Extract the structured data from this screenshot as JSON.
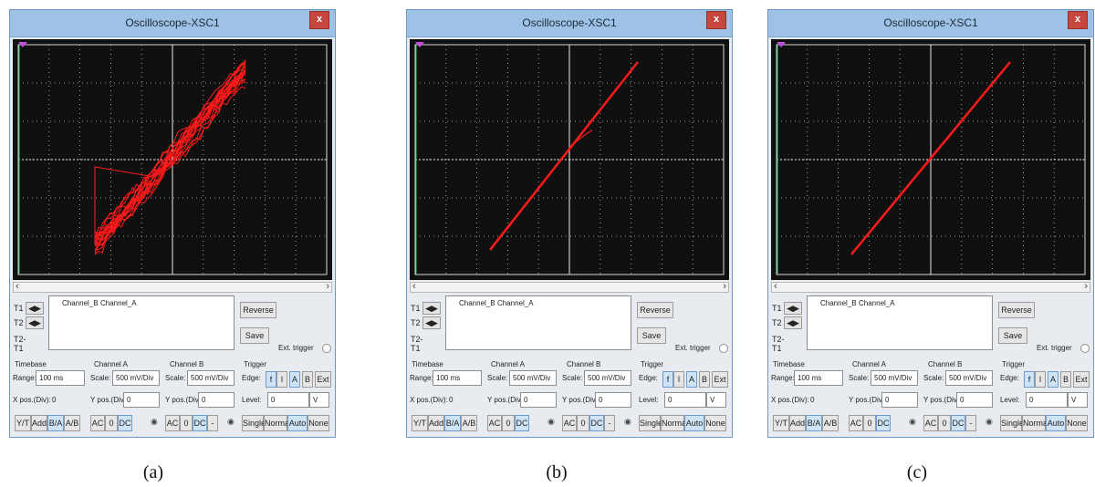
{
  "title": "Oscilloscope-XSC1",
  "close": "x",
  "cursors": {
    "t1": "T1",
    "t2": "T2",
    "t2t1": "T2-T1",
    "arrows": "◀▶"
  },
  "measure": {
    "ch_b": "Channel_B",
    "ch_a": "Channel_A"
  },
  "buttons": {
    "reverse": "Reverse",
    "save": "Save",
    "ext_trigger": "Ext. trigger"
  },
  "timebase": {
    "heading": "Timebase",
    "range_label": "Range:",
    "range": "100 ms",
    "xpos_label": "X pos.(Div):",
    "xpos": "0",
    "modes": [
      "Y/T",
      "Add",
      "B/A",
      "A/B"
    ]
  },
  "channel_a": {
    "heading": "Channel A",
    "scale_label": "Scale:",
    "scale": "500 mV/Div",
    "ypos_label": "Y pos.(Div):",
    "ypos": "0",
    "coupling": [
      "AC",
      "0",
      "DC"
    ]
  },
  "channel_b": {
    "heading": "Channel B",
    "scale_label": "Scale:",
    "scale": "500 mV/Div",
    "ypos_label": "Y pos.(Div):",
    "ypos": "0",
    "coupling": [
      "AC",
      "0",
      "DC",
      "-"
    ]
  },
  "trigger": {
    "heading": "Trigger",
    "edge_label": "Edge:",
    "edges": [
      "f",
      "l",
      "A",
      "B",
      "Ext"
    ],
    "level_label": "Level:",
    "level": "0",
    "level_unit": "V",
    "modes": [
      "Single",
      "Normal",
      "Auto",
      "None"
    ]
  },
  "captions": [
    "(a)",
    "(b)",
    "(c)"
  ],
  "colors": {
    "trace": "#ff1a1a",
    "grid": "#ffffff",
    "screen": "#101010"
  }
}
